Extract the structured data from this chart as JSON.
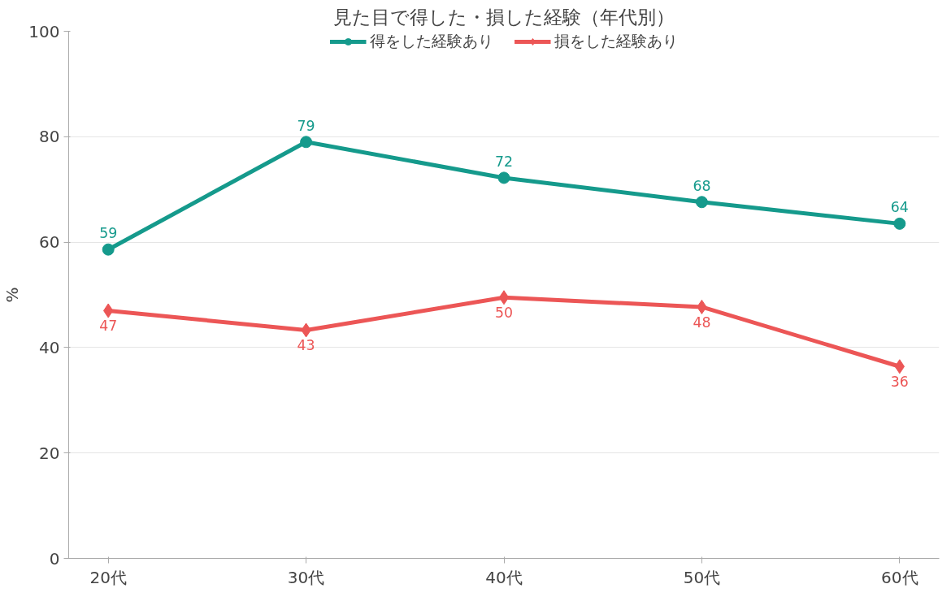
{
  "chart_data": {
    "type": "line",
    "title": "見た目で得した・損した経験（年代別）",
    "ylabel": "%",
    "categories": [
      "20代",
      "30代",
      "40代",
      "50代",
      "60代"
    ],
    "series": [
      {
        "name": "得をした経験あり",
        "color": "#159a8c",
        "marker": "circle",
        "values": [
          58.6,
          79.0,
          72.2,
          67.6,
          63.5
        ],
        "value_labels": [
          "59",
          "79",
          "72",
          "68",
          "64"
        ]
      },
      {
        "name": "損をした経験あり",
        "color": "#ec5656",
        "marker": "diamond",
        "values": [
          47.0,
          43.3,
          49.5,
          47.7,
          36.4
        ],
        "value_labels": [
          "47",
          "43",
          "50",
          "48",
          "36"
        ]
      }
    ],
    "ylim": [
      0,
      100
    ],
    "yticks": [
      0,
      20,
      40,
      60,
      80,
      100
    ],
    "grid": "y",
    "legend": "top",
    "line_style": "solid"
  }
}
